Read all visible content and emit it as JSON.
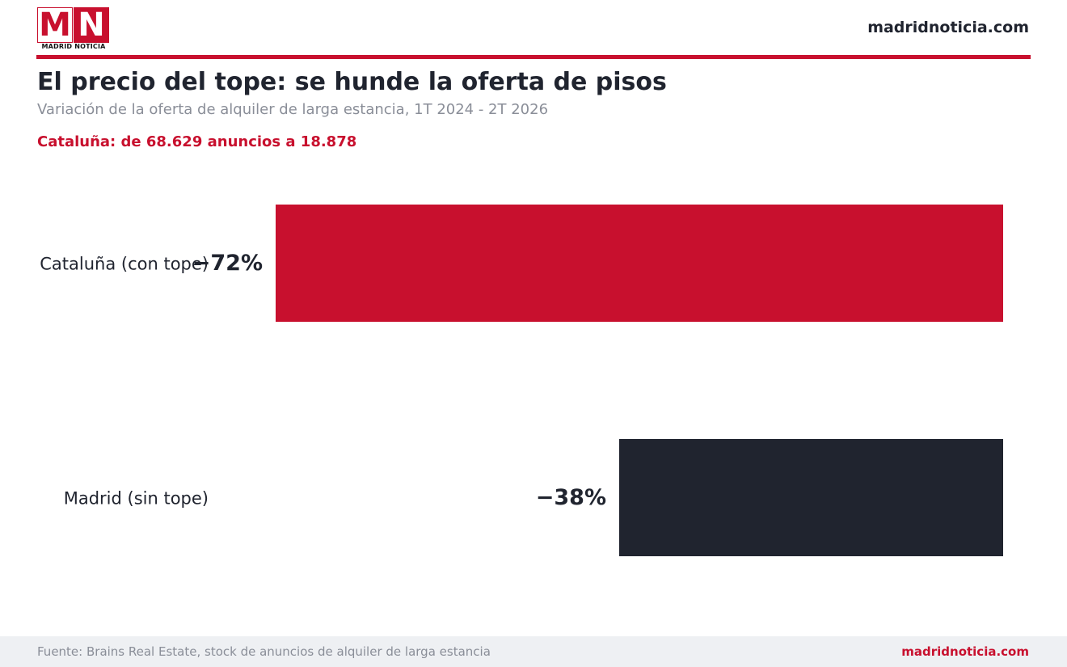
{
  "header": {
    "logo_letters": [
      "M",
      "N"
    ],
    "logo_text": "MADRID NOTICIA",
    "site": "madridnoticia.com"
  },
  "title": "El precio del tope: se hunde la oferta de pisos",
  "subtitle": "Variación de la oferta de alquiler de larga estancia, 1T 2024 - 2T 2026",
  "highlight": "Cataluña: de 68.629 anuncios a 18.878",
  "chart_data": {
    "type": "bar",
    "orientation": "horizontal",
    "categories": [
      "Cataluña (con tope)",
      "Madrid (sin tope)"
    ],
    "values": [
      -72,
      -38
    ],
    "value_labels": [
      "−72%",
      "−38%"
    ],
    "colors": [
      "#c8102e",
      "#20242f"
    ],
    "unit": "%",
    "xlim": [
      -80,
      0
    ],
    "grid": false,
    "legend": false
  },
  "footer": {
    "source": "Fuente: Brains Real Estate, stock de anuncios de alquiler de larga estancia",
    "site": "madridnoticia.com"
  }
}
